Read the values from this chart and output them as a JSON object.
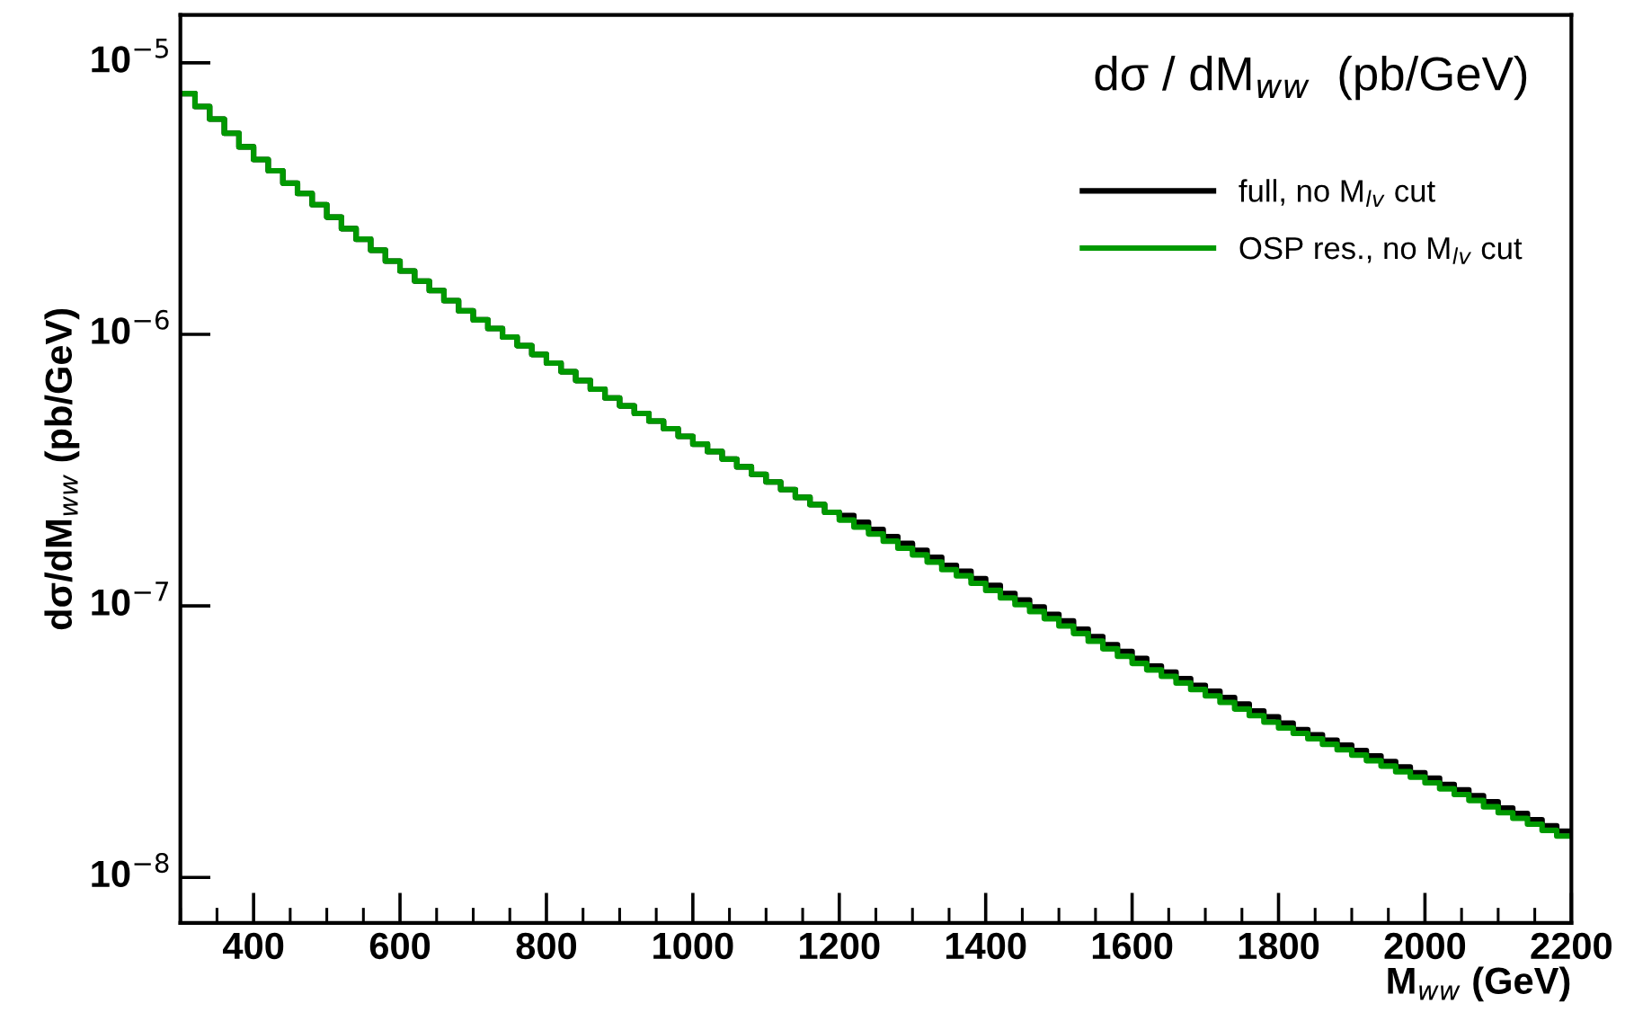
{
  "chart_data": {
    "type": "histogram",
    "title": "dσ / dM$_{ww}$  (pb/GeV)",
    "xlabel": "M$_{ww}$ (GeV)",
    "ylabel": "dσ/dM$_{ww}$ (pb/GeV)",
    "bins": [
      300,
      320,
      340,
      360,
      380,
      400,
      420,
      440,
      460,
      480,
      500,
      520,
      540,
      560,
      580,
      600,
      620,
      640,
      660,
      680,
      700,
      720,
      740,
      760,
      780,
      800,
      820,
      840,
      860,
      880,
      900,
      920,
      940,
      960,
      980,
      1000,
      1020,
      1040,
      1060,
      1080,
      1100,
      1120,
      1140,
      1160,
      1180,
      1200,
      1220,
      1240,
      1260,
      1280,
      1300,
      1320,
      1340,
      1360,
      1380,
      1400,
      1420,
      1440,
      1460,
      1480,
      1500,
      1520,
      1540,
      1560,
      1580,
      1600,
      1620,
      1640,
      1660,
      1680,
      1700,
      1720,
      1740,
      1760,
      1780,
      1800,
      1820,
      1840,
      1860,
      1880,
      1900,
      1920,
      1940,
      1960,
      1980,
      2000,
      2020,
      2040,
      2060,
      2080,
      2100,
      2120,
      2140,
      2160,
      2180,
      2200
    ],
    "series": [
      {
        "name": "full, no M$_{lv}$ cut",
        "color": "#000000",
        "values": [
          7.7e-06,
          6.9e-06,
          6.2e-06,
          5.5e-06,
          4.9e-06,
          4.4e-06,
          4e-06,
          3.6e-06,
          3.3e-06,
          3e-06,
          2.7e-06,
          2.45e-06,
          2.24e-06,
          2.04e-06,
          1.86e-06,
          1.71e-06,
          1.57e-06,
          1.45e-06,
          1.33e-06,
          1.22e-06,
          1.13e-06,
          1.05e-06,
          9.77e-07,
          9.08e-07,
          8.43e-07,
          7.83e-07,
          7.28e-07,
          6.76e-07,
          6.28e-07,
          5.83e-07,
          5.45e-07,
          5.11e-07,
          4.79e-07,
          4.49e-07,
          4.21e-07,
          3.94e-07,
          3.7e-07,
          3.47e-07,
          3.25e-07,
          3.05e-07,
          2.86e-07,
          2.68e-07,
          2.51e-07,
          2.36e-07,
          2.21e-07,
          2.15e-07,
          2.03e-07,
          1.91e-07,
          1.8e-07,
          1.7e-07,
          1.6e-07,
          1.51e-07,
          1.41e-07,
          1.34e-07,
          1.26e-07,
          1.19e-07,
          1.11e-07,
          1.05e-07,
          9.9e-08,
          9.3e-08,
          8.8e-08,
          8.2e-08,
          7.7e-08,
          7.2e-08,
          6.8e-08,
          6.4e-08,
          6e-08,
          5.7e-08,
          5.4e-08,
          5.1e-08,
          4.85e-08,
          4.6e-08,
          4.35e-08,
          4.1e-08,
          3.9e-08,
          3.7e-08,
          3.5e-08,
          3.35e-08,
          3.2e-08,
          3.07e-08,
          2.93e-08,
          2.8e-08,
          2.67e-08,
          2.55e-08,
          2.43e-08,
          2.32e-08,
          2.2e-08,
          2.1e-08,
          2e-08,
          1.9e-08,
          1.8e-08,
          1.72e-08,
          1.63e-08,
          1.55e-08,
          1.48e-08
        ]
      },
      {
        "name": "OSP res., no M$_{lv}$ cut",
        "color": "#009900",
        "values": [
          7.7e-06,
          6.9e-06,
          6.2e-06,
          5.5e-06,
          4.9e-06,
          4.4e-06,
          4e-06,
          3.6e-06,
          3.3e-06,
          3e-06,
          2.7e-06,
          2.45e-06,
          2.24e-06,
          2.04e-06,
          1.86e-06,
          1.71e-06,
          1.57e-06,
          1.45e-06,
          1.33e-06,
          1.22e-06,
          1.13e-06,
          1.05e-06,
          9.77e-07,
          9.08e-07,
          8.43e-07,
          7.83e-07,
          7.28e-07,
          6.76e-07,
          6.28e-07,
          5.83e-07,
          5.45e-07,
          5.11e-07,
          4.79e-07,
          4.49e-07,
          4.21e-07,
          3.94e-07,
          3.7e-07,
          3.47e-07,
          3.25e-07,
          3.05e-07,
          2.86e-07,
          2.68e-07,
          2.51e-07,
          2.36e-07,
          2.21e-07,
          2.07e-07,
          1.95e-07,
          1.84e-07,
          1.73e-07,
          1.63e-07,
          1.54e-07,
          1.45e-07,
          1.36e-07,
          1.29e-07,
          1.21e-07,
          1.14e-07,
          1.07e-07,
          1.01e-07,
          9.53e-08,
          8.97e-08,
          8.43e-08,
          7.91e-08,
          7.41e-08,
          6.95e-08,
          6.52e-08,
          6.14e-08,
          5.81e-08,
          5.5e-08,
          5.2e-08,
          4.92e-08,
          4.66e-08,
          4.41e-08,
          4.17e-08,
          3.94e-08,
          3.73e-08,
          3.55e-08,
          3.39e-08,
          3.24e-08,
          3.09e-08,
          2.95e-08,
          2.82e-08,
          2.69e-08,
          2.57e-08,
          2.45e-08,
          2.34e-08,
          2.23e-08,
          2.12e-08,
          2.02e-08,
          1.92e-08,
          1.82e-08,
          1.73e-08,
          1.65e-08,
          1.57e-08,
          1.49e-08,
          1.42e-08
        ]
      }
    ],
    "log": "y",
    "xlim": [
      300,
      2200
    ],
    "ylim": [
      6.8e-09,
      1.5e-05
    ],
    "xticks": [
      400,
      600,
      800,
      1000,
      1200,
      1400,
      1600,
      1800,
      2000,
      2200
    ],
    "yticks": [
      {
        "value": 1e-08,
        "label": "10$^{−8}$"
      },
      {
        "value": 1e-07,
        "label": "10$^{−7}$"
      },
      {
        "value": 1e-06,
        "label": "10$^{−6}$"
      },
      {
        "value": 1e-05,
        "label": "10$^{−5}$"
      }
    ],
    "legend": "top right",
    "grid": false
  }
}
